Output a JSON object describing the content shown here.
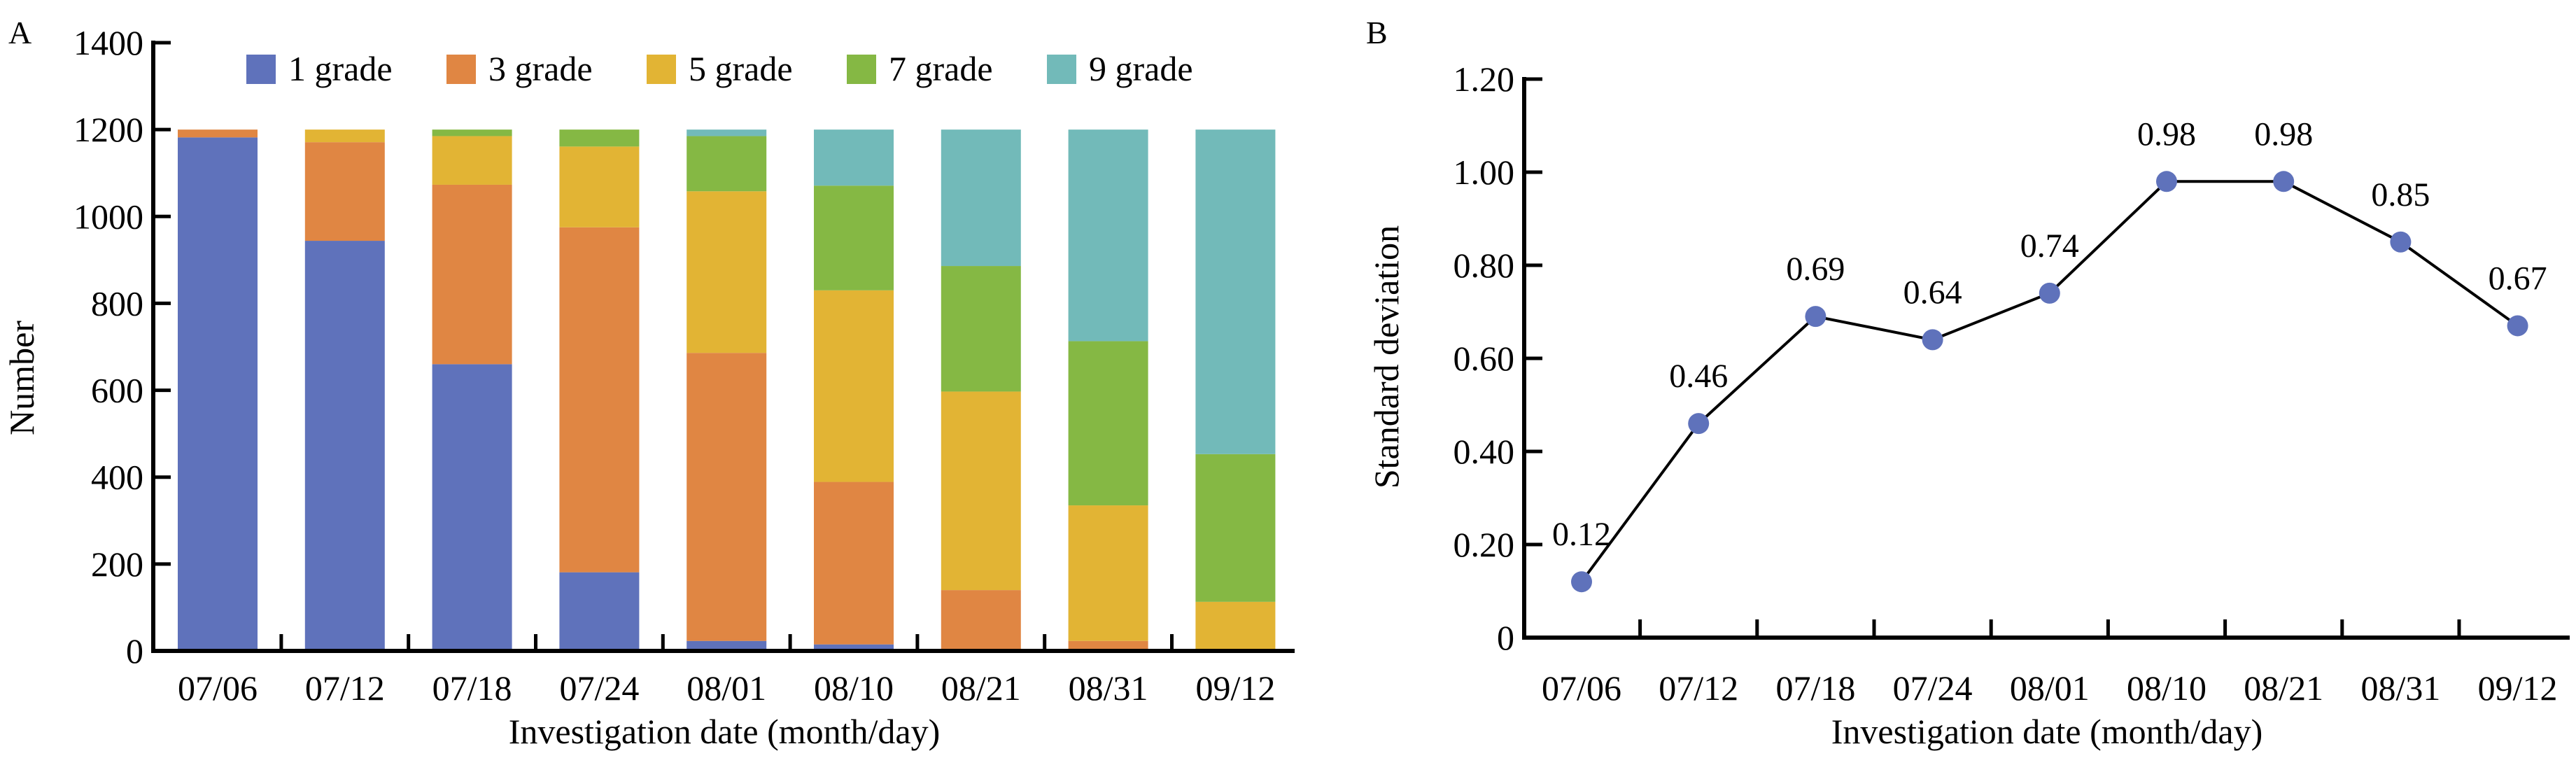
{
  "chart_data": [
    {
      "panel": "A",
      "type": "bar",
      "stacked": true,
      "title": "",
      "xlabel": "Investigation date (month/day)",
      "ylabel": "Number",
      "ylim": [
        0,
        1400
      ],
      "yticks": [
        0,
        200,
        400,
        600,
        800,
        1000,
        1200,
        1400
      ],
      "categories": [
        "07/06",
        "07/12",
        "07/18",
        "07/24",
        "08/01",
        "08/10",
        "08/21",
        "08/31",
        "09/12"
      ],
      "legend_position": "top",
      "series": [
        {
          "name": "1 grade",
          "color": "#5f72bb",
          "values": [
            1182,
            944,
            660,
            181,
            23,
            15,
            0,
            0,
            0
          ]
        },
        {
          "name": "3 grade",
          "color": "#e08643",
          "values": [
            18,
            227,
            413,
            794,
            663,
            374,
            140,
            23,
            0
          ]
        },
        {
          "name": "5 grade",
          "color": "#e2b434",
          "values": [
            0,
            29,
            112,
            186,
            372,
            441,
            457,
            312,
            113
          ]
        },
        {
          "name": "7 grade",
          "color": "#85b844",
          "values": [
            0,
            0,
            15,
            39,
            127,
            241,
            289,
            378,
            340
          ]
        },
        {
          "name": "9 grade",
          "color": "#72bab9",
          "values": [
            0,
            0,
            0,
            0,
            15,
            129,
            314,
            487,
            747
          ]
        }
      ]
    },
    {
      "panel": "B",
      "type": "line",
      "title": "",
      "xlabel": "Investigation date (month/day)",
      "ylabel": "Standard deviation",
      "ylim": [
        0,
        1.2
      ],
      "yticks": [
        "0",
        "0.20",
        "0.40",
        "0.60",
        "0.80",
        "1.00",
        "1.20"
      ],
      "categories": [
        "07/06",
        "07/12",
        "07/18",
        "07/24",
        "08/01",
        "08/10",
        "08/21",
        "08/31",
        "09/12"
      ],
      "series": [
        {
          "name": "Standard deviation",
          "color": "#5f72bb",
          "values": [
            0.12,
            0.46,
            0.69,
            0.64,
            0.74,
            0.98,
            0.98,
            0.85,
            0.67
          ],
          "labels": [
            "0.12",
            "0.46",
            "0.69",
            "0.64",
            "0.74",
            "0.98",
            "0.98",
            "0.85",
            "0.67"
          ]
        }
      ]
    }
  ]
}
